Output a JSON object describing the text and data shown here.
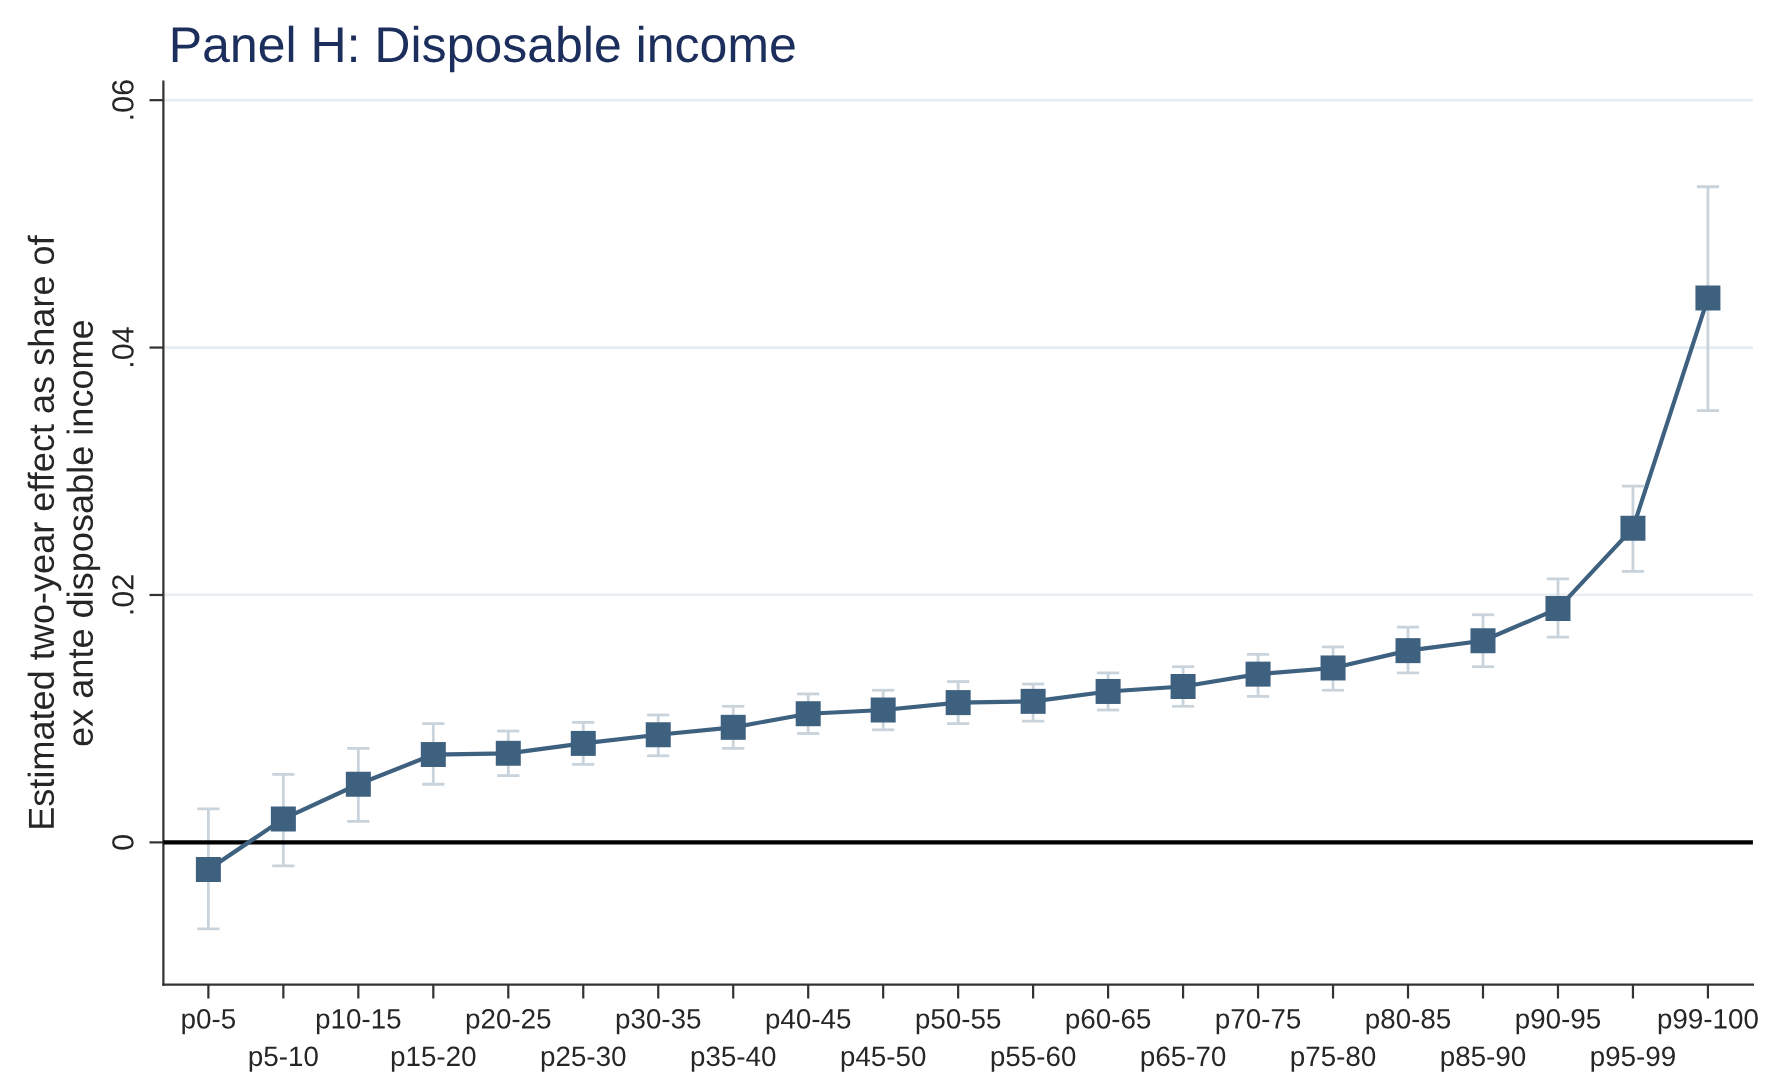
{
  "chart_data": {
    "type": "line",
    "title": "Panel H: Disposable income",
    "ylabel": "Estimated two-year effect as share of\nex ante disposable income",
    "categories": [
      "p0-5",
      "p5-10",
      "p10-15",
      "p15-20",
      "p20-25",
      "p25-30",
      "p30-35",
      "p35-40",
      "p40-45",
      "p45-50",
      "p50-55",
      "p55-60",
      "p60-65",
      "p65-70",
      "p70-75",
      "p75-80",
      "p80-85",
      "p85-90",
      "p90-95",
      "p95-99",
      "p99-100"
    ],
    "series": [
      {
        "color": "#3e6180",
        "values": [
          -0.0022,
          0.0019,
          0.0047,
          0.0071,
          0.0072,
          0.008,
          0.0087,
          0.0093,
          0.0104,
          0.0107,
          0.0113,
          0.0114,
          0.0122,
          0.0126,
          0.0136,
          0.0141,
          0.0155,
          0.0163,
          0.0189,
          0.0254,
          0.044
        ],
        "errors": [
          [
            -0.007,
            0.0027
          ],
          [
            -0.0019,
            0.0055
          ],
          [
            0.0017,
            0.0076
          ],
          [
            0.0047,
            0.0096
          ],
          [
            0.0054,
            0.009
          ],
          [
            0.0063,
            0.0097
          ],
          [
            0.007,
            0.0103
          ],
          [
            0.0076,
            0.011
          ],
          [
            0.0088,
            0.012
          ],
          [
            0.0091,
            0.0123
          ],
          [
            0.0096,
            0.013
          ],
          [
            0.0098,
            0.0128
          ],
          [
            0.0107,
            0.0137
          ],
          [
            0.011,
            0.0142
          ],
          [
            0.0118,
            0.0152
          ],
          [
            0.0123,
            0.0158
          ],
          [
            0.0137,
            0.0174
          ],
          [
            0.0142,
            0.0184
          ],
          [
            0.0166,
            0.0213
          ],
          [
            0.0219,
            0.0288
          ],
          [
            0.0349,
            0.053
          ]
        ]
      }
    ],
    "ylim": [
      -0.0115,
      0.0615
    ],
    "yticks": [
      {
        "value": 0,
        "label": "0"
      },
      {
        "value": 0.02,
        "label": ".02"
      },
      {
        "value": 0.04,
        "label": ".04"
      },
      {
        "value": 0.06,
        "label": ".06"
      }
    ],
    "ref_lines": [
      {
        "axis": "y",
        "value": 0,
        "color": "#000000"
      }
    ],
    "grid": "y",
    "marker": "square",
    "line_style": "solid"
  }
}
